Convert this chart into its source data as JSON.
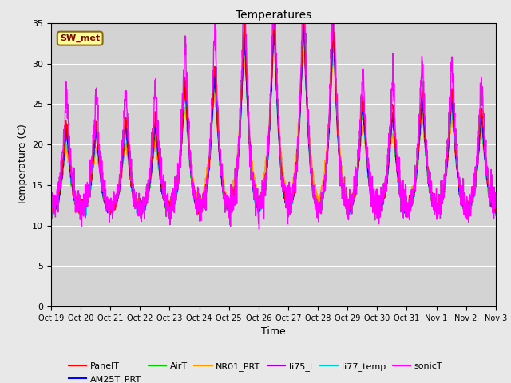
{
  "title": "Temperatures",
  "xlabel": "Time",
  "ylabel": "Temperature (C)",
  "ylim": [
    0,
    35
  ],
  "fig_facecolor": "#e8e8e8",
  "ax_facecolor": "#d3d3d3",
  "annotation_text": "SW_met",
  "annotation_color": "#8B0000",
  "annotation_bg": "#ffff99",
  "annotation_border": "#8B6914",
  "x_ticks": [
    "Oct 19",
    "Oct 20",
    "Oct 21",
    "Oct 22",
    "Oct 23",
    "Oct 24",
    "Oct 25",
    "Oct 26",
    "Oct 27",
    "Oct 28",
    "Oct 29",
    "Oct 30",
    "Oct 31",
    "Nov 1",
    "Nov 2",
    "Nov 3"
  ],
  "series": {
    "PanelT": {
      "color": "#ff0000",
      "lw": 1.0
    },
    "AM25T_PRT": {
      "color": "#0000ff",
      "lw": 1.0
    },
    "AirT": {
      "color": "#00cc00",
      "lw": 1.0
    },
    "NR01_PRT": {
      "color": "#ff9900",
      "lw": 1.0
    },
    "li75_t": {
      "color": "#9900cc",
      "lw": 1.0
    },
    "li77_temp": {
      "color": "#00cccc",
      "lw": 1.0
    },
    "sonicT": {
      "color": "#ff00ff",
      "lw": 1.0
    }
  },
  "day_peaks": [
    21.5,
    21.5,
    22.0,
    22.0,
    27.0,
    28.5,
    33.5,
    34.5,
    34.5,
    33.5,
    24.5,
    23.5,
    25.5,
    25.5,
    23.5
  ],
  "night_base": 11.5,
  "n_days": 15,
  "points_per_day": 144
}
